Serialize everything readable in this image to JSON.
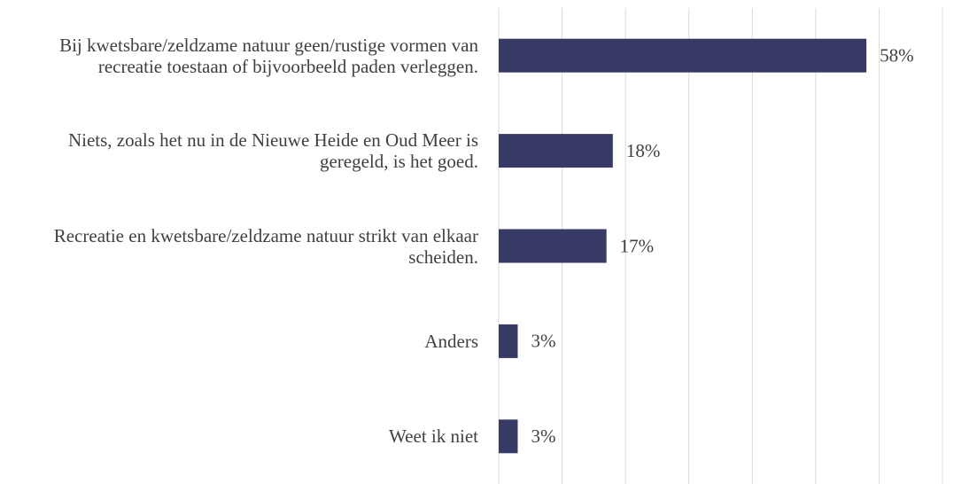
{
  "chart_data": {
    "type": "bar",
    "orientation": "horizontal",
    "categories": [
      "Bij kwetsbare/zeldzame natuur geen/rustige vormen van recreatie toestaan of bijvoorbeeld paden verleggen.",
      "Niets, zoals het nu in de Nieuwe Heide en Oud Meer is geregeld, is het goed.",
      "Recreatie en kwetsbare/zeldzame natuur strikt van elkaar scheiden.",
      "Anders",
      "Weet ik niet"
    ],
    "values": [
      58,
      18,
      17,
      3,
      3
    ],
    "value_labels": [
      "58%",
      "18%",
      "17%",
      "3%",
      "3%"
    ],
    "color": "#363a65",
    "xlim": [
      0,
      70
    ],
    "xticks": [
      0,
      10,
      20,
      30,
      40,
      50,
      60,
      70
    ],
    "grid": true
  }
}
